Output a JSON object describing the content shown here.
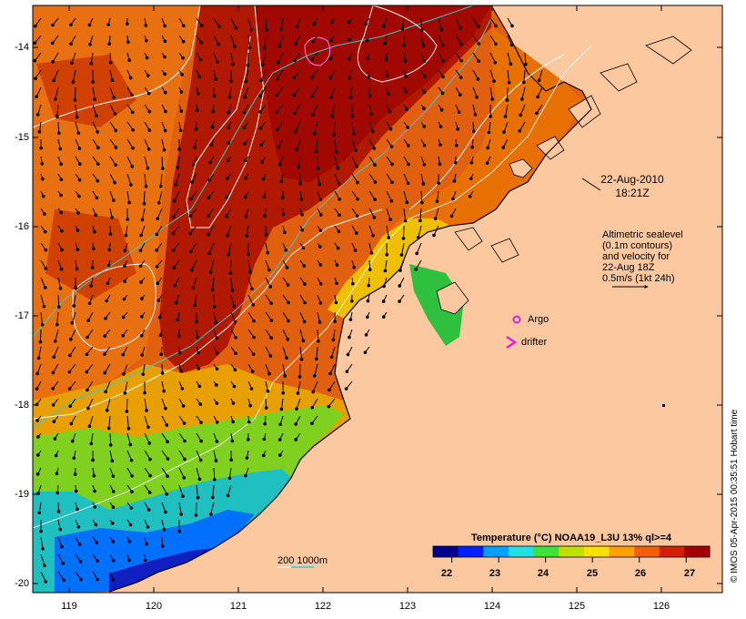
{
  "map": {
    "title_date": [
      "22-Aug-2010",
      "18:21Z"
    ],
    "altimetry_note": [
      "Altimetric sealevel",
      "(0.1m contours)",
      "and velocity for",
      "22-Aug 18Z",
      "0.5m/s (1kt 24h)"
    ],
    "legend": {
      "argo_label": "Argo",
      "drifter_label": "drifter",
      "depth_contours_label": "200  1000m"
    },
    "credit": "© IMOS 05-Apr-2015 00:35:51 Hobart time",
    "colors": {
      "land": "#fcc8a0",
      "argo": "#e020e0",
      "drifter": "#e020e0",
      "sla_contour": "#ffffff",
      "bathy_200": "#ffffff",
      "bathy_1000": "#40c8c8",
      "arrow": "#000000"
    },
    "lon_ticks": [
      "119",
      "120",
      "121",
      "122",
      "123",
      "124",
      "125",
      "126"
    ],
    "lat_ticks": [
      "-14",
      "-15",
      "-16",
      "-17",
      "-18",
      "-19",
      "-20"
    ]
  },
  "colorbar": {
    "title": "Temperature (°C) NOAA19_L3U 13% ql>=4",
    "ticks": [
      "22",
      "23",
      "24",
      "25",
      "26",
      "27"
    ],
    "range": [
      21.6,
      27.5
    ],
    "colors": [
      "#00008f",
      "#0020ff",
      "#00a0ff",
      "#20e0e0",
      "#40e040",
      "#c0e000",
      "#f8e000",
      "#ffa000",
      "#f06000",
      "#d02000",
      "#a00000"
    ]
  }
}
